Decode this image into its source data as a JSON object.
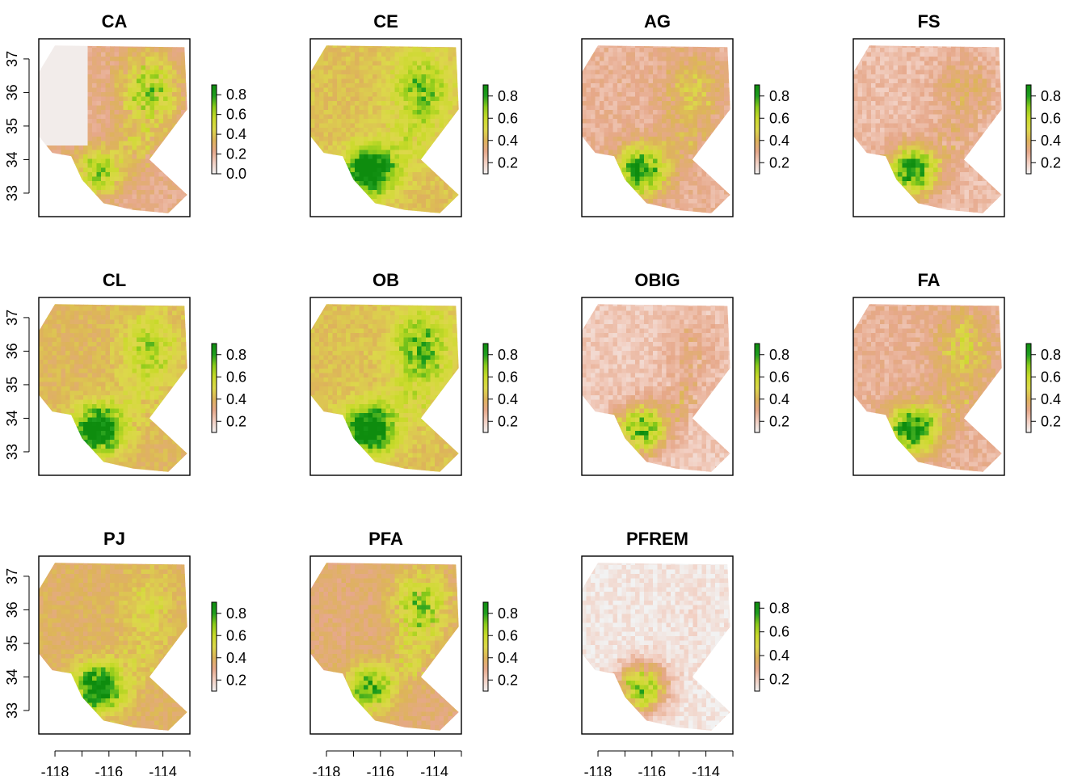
{
  "chart_data": {
    "type": "heatmap",
    "layout": {
      "rows": 3,
      "cols": 4
    },
    "colorscale": [
      "#F2F2F2",
      "#F2CFC2",
      "#E6A88A",
      "#DDB35A",
      "#DCD84A",
      "#C9DA2A",
      "#8CCB1A",
      "#1F9E1F",
      "#0E8C0E"
    ],
    "panels": [
      {
        "title": "CA",
        "legend_ticks": [
          "0.8",
          "0.6",
          "0.4",
          "0.2",
          "0.0"
        ],
        "legend_range": [
          0.0,
          0.9
        ],
        "mean": 0.25,
        "sw": 0.55,
        "ne": 0.82,
        "center": 0.82,
        "west_blank": true
      },
      {
        "title": "CE",
        "legend_ticks": [
          "0.8",
          "0.6",
          "0.4",
          "0.2"
        ],
        "legend_range": [
          0.1,
          0.9
        ],
        "mean": 0.42,
        "sw": 0.9,
        "ne": 0.62,
        "center": 0.72,
        "west_blank": false
      },
      {
        "title": "AG",
        "legend_ticks": [
          "0.8",
          "0.6",
          "0.4",
          "0.2"
        ],
        "legend_range": [
          0.1,
          0.9
        ],
        "mean": 0.22,
        "sw": 0.88,
        "ne": 0.42,
        "center": 0.65,
        "west_blank": false
      },
      {
        "title": "FS",
        "legend_ticks": [
          "0.8",
          "0.6",
          "0.4",
          "0.2"
        ],
        "legend_range": [
          0.1,
          0.9
        ],
        "mean": 0.18,
        "sw": 0.9,
        "ne": 0.28,
        "center": 0.45,
        "west_blank": false
      },
      {
        "title": "CL",
        "legend_ticks": [
          "0.8",
          "0.6",
          "0.4",
          "0.2"
        ],
        "legend_range": [
          0.1,
          0.9
        ],
        "mean": 0.38,
        "sw": 0.9,
        "ne": 0.55,
        "center": 0.55,
        "west_blank": false
      },
      {
        "title": "OB",
        "legend_ticks": [
          "0.8",
          "0.6",
          "0.4",
          "0.2"
        ],
        "legend_range": [
          0.1,
          0.9
        ],
        "mean": 0.42,
        "sw": 0.9,
        "ne": 0.72,
        "center": 0.65,
        "west_blank": false
      },
      {
        "title": "OBIG",
        "legend_ticks": [
          "0.8",
          "0.6",
          "0.4",
          "0.2"
        ],
        "legend_range": [
          0.1,
          0.9
        ],
        "mean": 0.14,
        "sw": 0.8,
        "ne": 0.22,
        "center": 0.75,
        "west_blank": false
      },
      {
        "title": "FA",
        "legend_ticks": [
          "0.8",
          "0.6",
          "0.4",
          "0.2"
        ],
        "legend_range": [
          0.1,
          0.9
        ],
        "mean": 0.22,
        "sw": 0.9,
        "ne": 0.5,
        "center": 0.6,
        "west_blank": false
      },
      {
        "title": "PJ",
        "legend_ticks": [
          "0.8",
          "0.6",
          "0.4",
          "0.2"
        ],
        "legend_range": [
          0.1,
          0.9
        ],
        "mean": 0.35,
        "sw": 0.88,
        "ne": 0.3,
        "center": 0.5,
        "west_blank": false
      },
      {
        "title": "PFA",
        "legend_ticks": [
          "0.8",
          "0.6",
          "0.4",
          "0.2"
        ],
        "legend_range": [
          0.1,
          0.9
        ],
        "mean": 0.3,
        "sw": 0.65,
        "ne": 0.75,
        "center": 0.7,
        "west_blank": false
      },
      {
        "title": "PFREM",
        "legend_ticks": [
          "0.8",
          "0.6",
          "0.4",
          "0.2"
        ],
        "legend_range": [
          0.1,
          0.85
        ],
        "mean": 0.04,
        "sw": 0.85,
        "ne": 0.05,
        "center": 0.1,
        "west_blank": false
      }
    ],
    "x_ticks": [
      "-118",
      "-116",
      "-114"
    ],
    "x_tick_values": [
      -118,
      -116,
      -114
    ],
    "y_ticks": [
      "33",
      "34",
      "35",
      "36",
      "37"
    ],
    "y_tick_values": [
      33,
      34,
      35,
      36,
      37
    ],
    "xlim": [
      -118.6,
      -113.0
    ],
    "ylim": [
      32.3,
      37.6
    ],
    "xlabel": "",
    "ylabel": ""
  }
}
